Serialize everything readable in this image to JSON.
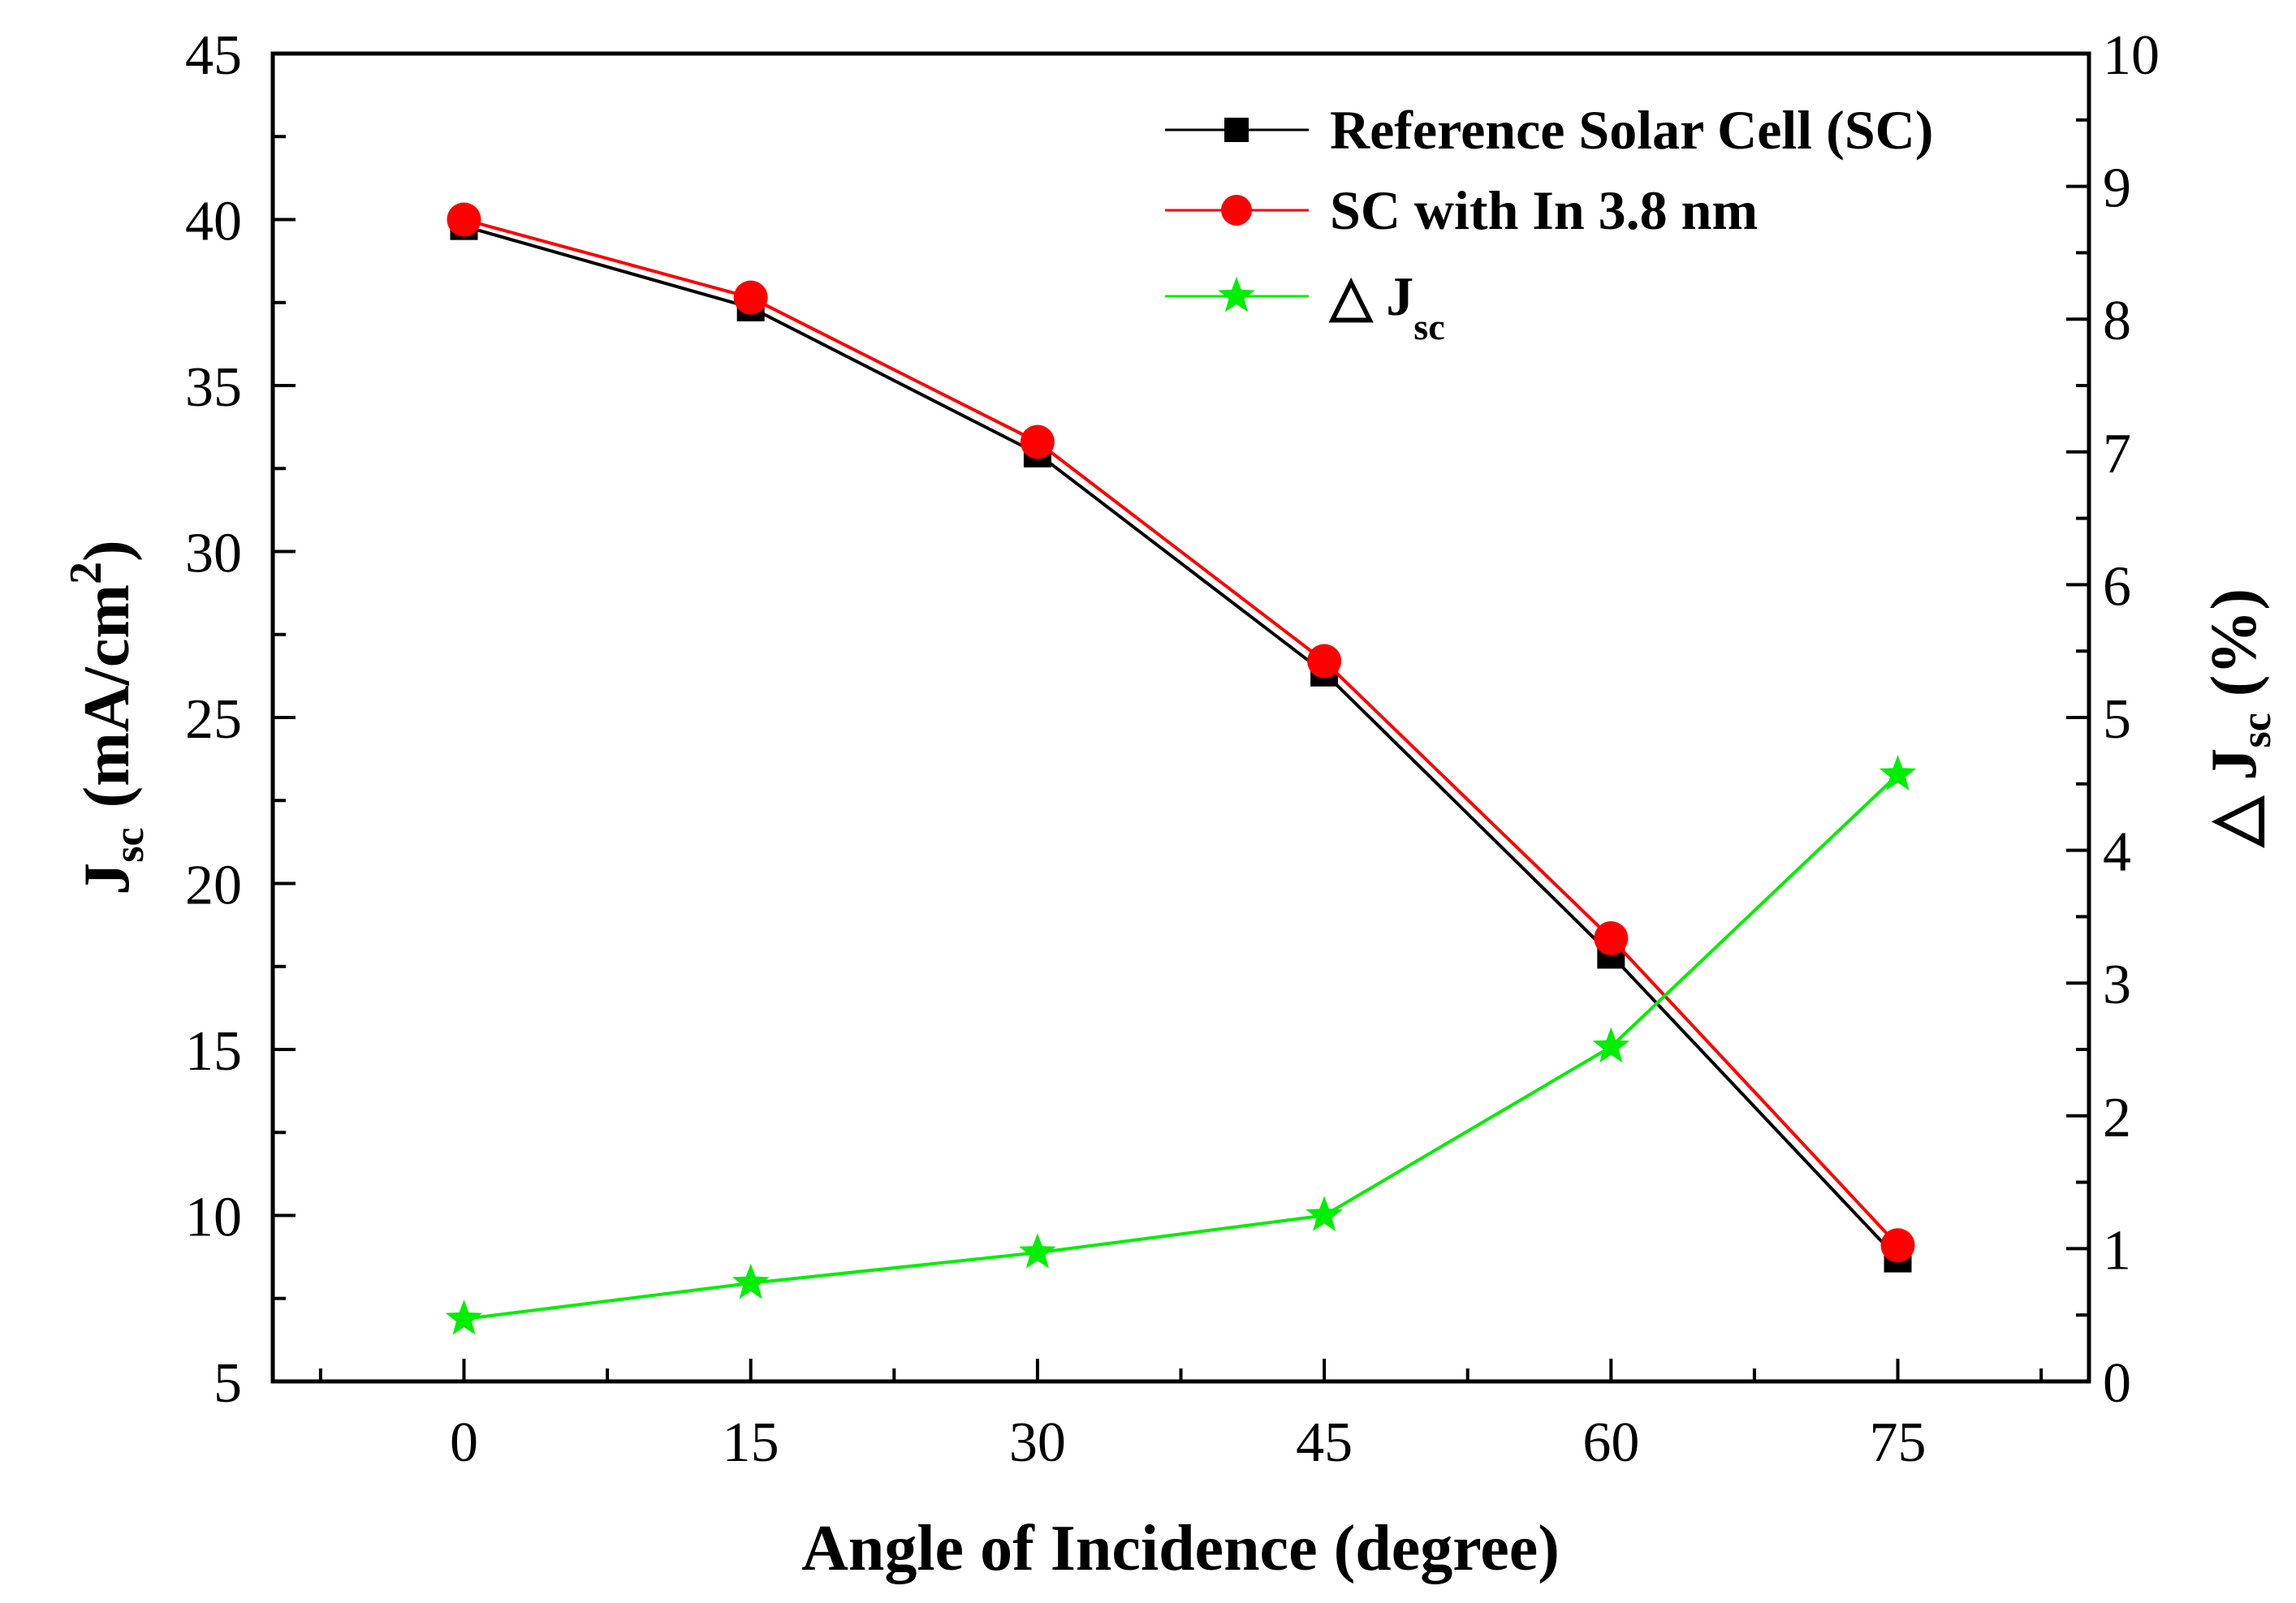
{
  "chart_data": {
    "type": "line",
    "x": [
      0,
      15,
      30,
      45,
      60,
      75
    ],
    "x_ticks": [
      "0",
      "15",
      "30",
      "45",
      "60",
      "75"
    ],
    "xlim": [
      -10,
      85
    ],
    "xlabel": "Angle of Incidence (degree)",
    "ylabel_left": {
      "main": "J",
      "sub": "sc",
      "units": "(mA/cm",
      "sup": "2",
      "close": ")"
    },
    "ylabel_right": {
      "prefix": "△ J",
      "sub": "sc",
      "suffix": " (%)"
    },
    "ylim_left": [
      5,
      45
    ],
    "ylim_right": [
      0,
      10
    ],
    "y_ticks_left": [
      "5",
      "10",
      "15",
      "20",
      "25",
      "30",
      "35",
      "40",
      "45"
    ],
    "y_ticks_right": [
      "0",
      "1",
      "2",
      "3",
      "4",
      "5",
      "6",
      "7",
      "8",
      "9",
      "10"
    ],
    "series": [
      {
        "name": "Reference Solar Cell (SC)",
        "axis": "left",
        "color": "#000000",
        "marker": "square",
        "values": [
          39.8,
          37.35,
          32.95,
          26.35,
          17.85,
          8.7
        ]
      },
      {
        "name": "SC with In 3.8 nm",
        "axis": "left",
        "color": "#ff0000",
        "marker": "circle",
        "values": [
          40.0,
          37.65,
          33.3,
          26.7,
          18.35,
          9.1
        ]
      },
      {
        "name": "△ J",
        "name_sub": "sc",
        "axis": "right",
        "color": "#00ee00",
        "marker": "star",
        "values": [
          0.47,
          0.74,
          0.97,
          1.25,
          2.52,
          4.57
        ]
      }
    ],
    "legend": "top-right",
    "grid": false
  }
}
